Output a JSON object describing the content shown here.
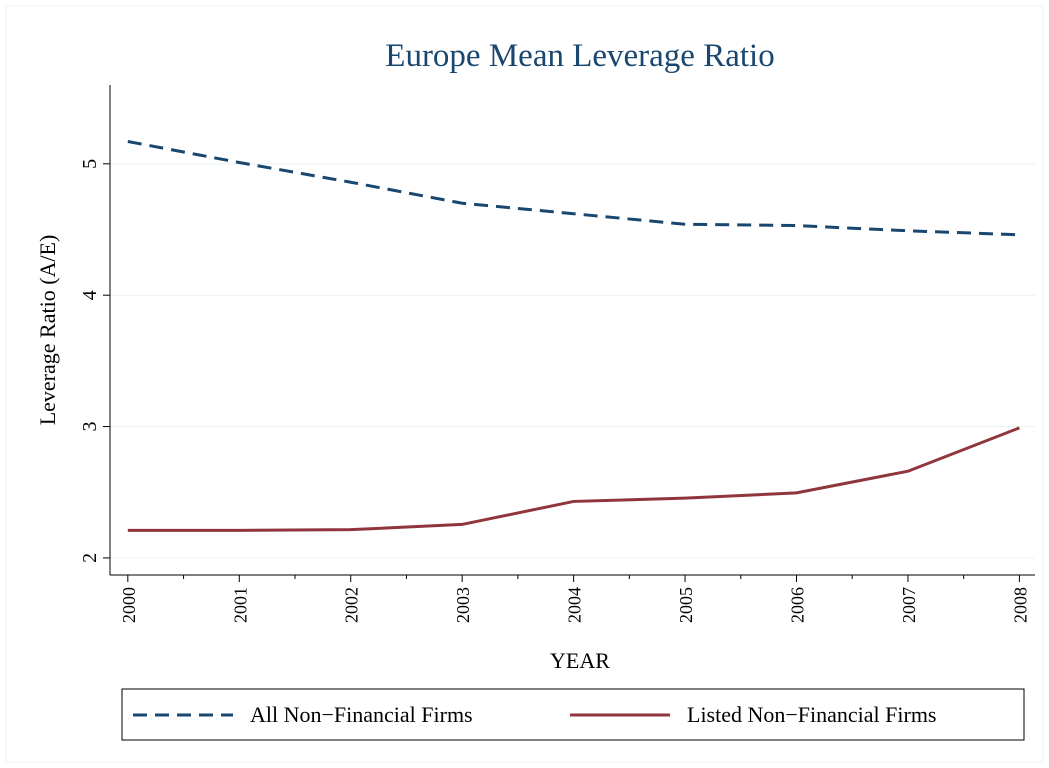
{
  "chart_data": {
    "type": "line",
    "title": "Europe Mean Leverage Ratio",
    "x_label": "YEAR",
    "y_label": "Leverage Ratio (A/E)",
    "x": [
      2000,
      2001,
      2002,
      2003,
      2004,
      2005,
      2006,
      2007,
      2008
    ],
    "series": [
      {
        "name": "All Non−Financial Firms",
        "color": "#1a476f",
        "dash": true,
        "values": [
          5.17,
          5.01,
          4.86,
          4.7,
          4.62,
          4.54,
          4.53,
          4.49,
          4.46
        ]
      },
      {
        "name": "Listed Non−Financial Firms",
        "color": "#90353b",
        "dash": false,
        "values": [
          2.21,
          2.21,
          2.215,
          2.255,
          2.43,
          2.455,
          2.495,
          2.66,
          2.99
        ]
      }
    ],
    "xlim": [
      1999.84,
      2008.14
    ],
    "xticks": [
      2000,
      2001,
      2002,
      2003,
      2004,
      2005,
      2006,
      2007,
      2008
    ],
    "ylim": [
      1.87,
      5.6
    ],
    "yticks": [
      2,
      3,
      4,
      5
    ],
    "grid": true,
    "legend": "bottom"
  }
}
